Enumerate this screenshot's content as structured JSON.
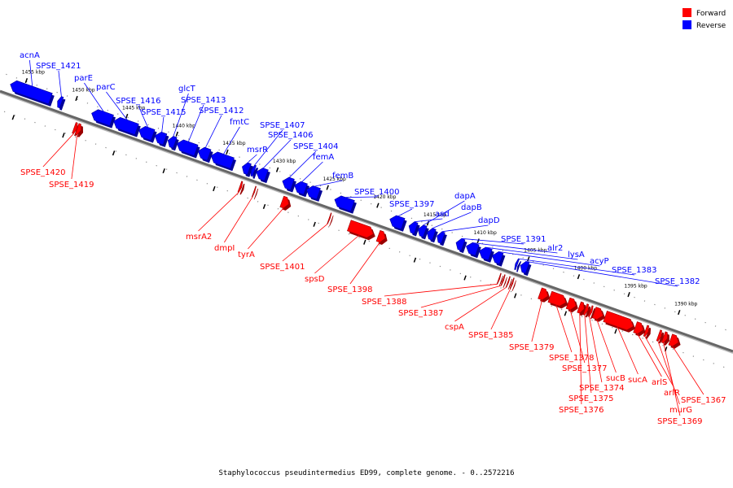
{
  "legend": [
    {
      "label": "Forward",
      "color": "#ff0000"
    },
    {
      "label": "Reverse",
      "color": "#0000ff"
    }
  ],
  "caption": "Staphylococcus pseudintermedius ED99, complete genome. - 0..2572216",
  "ticks": [
    {
      "label": "1455 kbp",
      "kbp": 1455
    },
    {
      "label": "1450 kbp",
      "kbp": 1450
    },
    {
      "label": "1445 kbp",
      "kbp": 1445
    },
    {
      "label": "1440 kbp",
      "kbp": 1440
    },
    {
      "label": "1435 kbp",
      "kbp": 1435
    },
    {
      "label": "1430 kbp",
      "kbp": 1430
    },
    {
      "label": "1425 kbp",
      "kbp": 1425
    },
    {
      "label": "1420 kbp",
      "kbp": 1420
    },
    {
      "label": "1415 kbp",
      "kbp": 1415
    },
    {
      "label": "1410 kbp",
      "kbp": 1410
    },
    {
      "label": "1405 kbp",
      "kbp": 1405
    },
    {
      "label": "1400 kbp",
      "kbp": 1400
    },
    {
      "label": "1395 kbp",
      "kbp": 1395
    },
    {
      "label": "1390 kbp",
      "kbp": 1390
    }
  ],
  "genes": [
    {
      "name": "acnA",
      "strand": "reverse",
      "start_kbp": 1456.3,
      "end_kbp": 1452.3
    },
    {
      "name": "SPSE_1421",
      "strand": "reverse",
      "start_kbp": 1451.6,
      "end_kbp": 1451.2
    },
    {
      "name": "parE",
      "strand": "reverse",
      "start_kbp": 1448.2,
      "end_kbp": 1446.2
    },
    {
      "name": "parC",
      "strand": "reverse",
      "start_kbp": 1446.0,
      "end_kbp": 1443.7
    },
    {
      "name": "SPSE_1416",
      "strand": "reverse",
      "start_kbp": 1443.5,
      "end_kbp": 1442.1
    },
    {
      "name": "SPSE_1415",
      "strand": "reverse",
      "start_kbp": 1441.9,
      "end_kbp": 1440.9
    },
    {
      "name": "glcT",
      "strand": "reverse",
      "start_kbp": 1440.6,
      "end_kbp": 1439.9
    },
    {
      "name": "SPSE_1413",
      "strand": "reverse",
      "start_kbp": 1439.7,
      "end_kbp": 1437.8
    },
    {
      "name": "SPSE_1412",
      "strand": "reverse",
      "start_kbp": 1437.6,
      "end_kbp": 1436.5
    },
    {
      "name": "fmtC",
      "strand": "reverse",
      "start_kbp": 1436.3,
      "end_kbp": 1434.2
    },
    {
      "name": "msrR",
      "strand": "reverse",
      "start_kbp": 1433.2,
      "end_kbp": 1432.5
    },
    {
      "name": "SPSE_1407",
      "strand": "reverse",
      "start_kbp": 1432.3,
      "end_kbp": 1432.0
    },
    {
      "name": "SPSE_1406",
      "strand": "reverse",
      "start_kbp": 1431.8,
      "end_kbp": 1430.8
    },
    {
      "name": "SPSE_1404",
      "strand": "reverse",
      "start_kbp": 1429.2,
      "end_kbp": 1428.2
    },
    {
      "name": "femA",
      "strand": "reverse",
      "start_kbp": 1428.0,
      "end_kbp": 1426.9
    },
    {
      "name": "femB",
      "strand": "reverse",
      "start_kbp": 1426.8,
      "end_kbp": 1425.6
    },
    {
      "name": "SPSE_1400",
      "strand": "reverse",
      "start_kbp": 1424.0,
      "end_kbp": 1422.2
    },
    {
      "name": "SPSE_1397",
      "strand": "reverse",
      "start_kbp": 1418.5,
      "end_kbp": 1417.2
    },
    {
      "name": "asd",
      "strand": "reverse",
      "start_kbp": 1416.6,
      "end_kbp": 1415.9
    },
    {
      "name": "dapA",
      "strand": "reverse",
      "start_kbp": 1415.7,
      "end_kbp": 1415.0
    },
    {
      "name": "dapB",
      "strand": "reverse",
      "start_kbp": 1414.8,
      "end_kbp": 1414.1
    },
    {
      "name": "dapD",
      "strand": "reverse",
      "start_kbp": 1413.8,
      "end_kbp": 1413.2
    },
    {
      "name": "SPSE_1391",
      "strand": "reverse",
      "start_kbp": 1411.9,
      "end_kbp": 1411.2
    },
    {
      "name": "alr2",
      "strand": "reverse",
      "start_kbp": 1410.9,
      "end_kbp": 1409.8
    },
    {
      "name": "lysA",
      "strand": "reverse",
      "start_kbp": 1409.6,
      "end_kbp": 1408.5
    },
    {
      "name": "acyP",
      "strand": "reverse",
      "start_kbp": 1408.3,
      "end_kbp": 1407.4
    },
    {
      "name": "SPSE_1383",
      "strand": "reverse",
      "start_kbp": 1406.0,
      "end_kbp": 1405.8
    },
    {
      "name": "SPSE_1382",
      "strand": "reverse",
      "start_kbp": 1405.5,
      "end_kbp": 1404.8
    },
    {
      "name": "SPSE_1420",
      "strand": "forward",
      "start_kbp": 1449.0,
      "end_kbp": 1449.3
    },
    {
      "name": "SPSE_1419",
      "strand": "forward",
      "start_kbp": 1448.6,
      "end_kbp": 1449.0
    },
    {
      "name": "msrA2",
      "strand": "forward",
      "start_kbp": 1432.6,
      "end_kbp": 1432.8
    },
    {
      "name": "dmpI",
      "strand": "forward",
      "start_kbp": 1431.3,
      "end_kbp": 1431.4
    },
    {
      "name": "tyrA",
      "strand": "forward",
      "start_kbp": 1427.9,
      "end_kbp": 1428.6
    },
    {
      "name": "SPSE_1401",
      "strand": "forward",
      "start_kbp": 1423.8,
      "end_kbp": 1423.9
    },
    {
      "name": "spsD",
      "strand": "forward",
      "start_kbp": 1419.5,
      "end_kbp": 1421.9
    },
    {
      "name": "SPSE_1398",
      "strand": "forward",
      "start_kbp": 1418.3,
      "end_kbp": 1419.0
    },
    {
      "name": "SPSE_1388",
      "strand": "forward",
      "start_kbp": 1406.9,
      "end_kbp": 1407.0
    },
    {
      "name": "SPSE_1387",
      "strand": "forward",
      "start_kbp": 1406.5,
      "end_kbp": 1406.6
    },
    {
      "name": "cspA",
      "strand": "forward",
      "start_kbp": 1406.0,
      "end_kbp": 1406.1
    },
    {
      "name": "SPSE_1385",
      "strand": "forward",
      "start_kbp": 1405.6,
      "end_kbp": 1405.7
    },
    {
      "name": "SPSE_1379",
      "strand": "forward",
      "start_kbp": 1402.1,
      "end_kbp": 1402.9
    },
    {
      "name": "SPSE_1378",
      "strand": "forward",
      "start_kbp": 1400.3,
      "end_kbp": 1401.9
    },
    {
      "name": "SPSE_1377",
      "strand": "forward",
      "start_kbp": 1399.3,
      "end_kbp": 1400.1
    },
    {
      "name": "SPSE_1376",
      "strand": "forward",
      "start_kbp": 1398.5,
      "end_kbp": 1399.0
    },
    {
      "name": "SPSE_1375",
      "strand": "forward",
      "start_kbp": 1398.1,
      "end_kbp": 1398.4
    },
    {
      "name": "SPSE_1374",
      "strand": "forward",
      "start_kbp": 1397.7,
      "end_kbp": 1397.9
    },
    {
      "name": "sucB",
      "strand": "forward",
      "start_kbp": 1396.6,
      "end_kbp": 1397.5
    },
    {
      "name": "sucA",
      "strand": "forward",
      "start_kbp": 1393.6,
      "end_kbp": 1396.4
    },
    {
      "name": "arlS",
      "strand": "forward",
      "start_kbp": 1392.6,
      "end_kbp": 1393.4
    },
    {
      "name": "arlR",
      "strand": "forward",
      "start_kbp": 1392.1,
      "end_kbp": 1392.4
    },
    {
      "name": "murG",
      "strand": "forward",
      "start_kbp": 1390.8,
      "end_kbp": 1391.1
    },
    {
      "name": "SPSE_1369",
      "strand": "forward",
      "start_kbp": 1390.2,
      "end_kbp": 1390.6
    },
    {
      "name": "SPSE_1367",
      "strand": "forward",
      "start_kbp": 1389.1,
      "end_kbp": 1389.9
    }
  ]
}
